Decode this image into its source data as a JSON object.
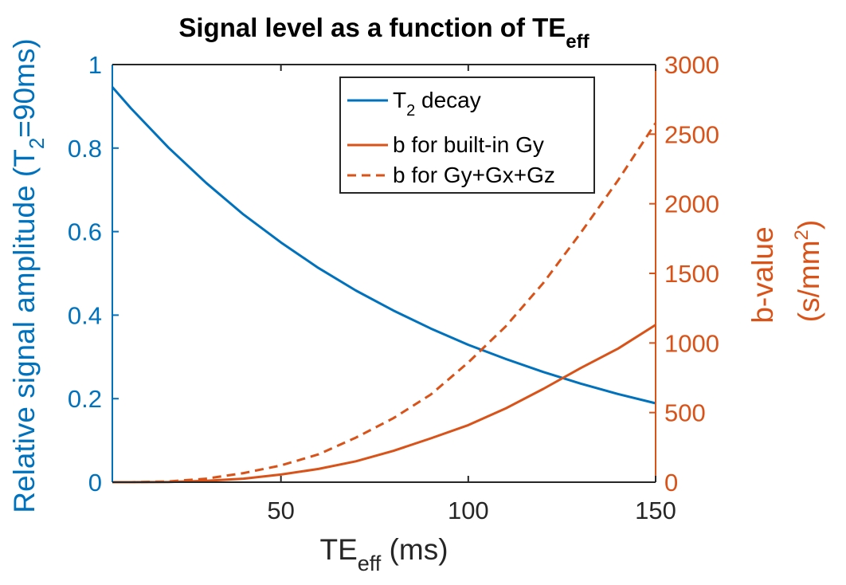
{
  "chart_data": {
    "type": "line",
    "title": {
      "main": "Signal level as a function of TE",
      "sub": "eff"
    },
    "xlabel": {
      "main": "TE",
      "sub": "eff",
      "tail": " (ms)"
    },
    "xlim": [
      5,
      150
    ],
    "xticks": [
      50,
      100,
      150
    ],
    "grid": false,
    "left_axis": {
      "label": {
        "pre": "Relative signal amplitude (T",
        "sub": "2",
        "post": "=90ms)"
      },
      "ylim": [
        0,
        1
      ],
      "ticks": [
        "0",
        "0.2",
        "0.4",
        "0.6",
        "0.8",
        "1"
      ],
      "tick_values": [
        0,
        0.2,
        0.4,
        0.6,
        0.8,
        1
      ],
      "color": "#0072BD"
    },
    "right_axis": {
      "label_line1": "b-value",
      "label_line2": {
        "pre": "(s/mm",
        "sup": "2",
        "post": ")"
      },
      "ylim": [
        0,
        3000
      ],
      "ticks": [
        "0",
        "500",
        "1000",
        "1500",
        "2000",
        "2500",
        "3000"
      ],
      "tick_values": [
        0,
        500,
        1000,
        1500,
        2000,
        2500,
        3000
      ],
      "color": "#D95319"
    },
    "series": [
      {
        "name": {
          "pre": "T",
          "sub": "2",
          "post": " decay"
        },
        "axis": "left",
        "style": "solid",
        "color": "#0072BD",
        "x": [
          5,
          10,
          20,
          30,
          40,
          50,
          60,
          70,
          80,
          90,
          100,
          110,
          120,
          130,
          140,
          150
        ],
        "y": [
          0.946,
          0.895,
          0.801,
          0.717,
          0.641,
          0.574,
          0.513,
          0.459,
          0.411,
          0.368,
          0.329,
          0.295,
          0.264,
          0.236,
          0.211,
          0.189
        ]
      },
      {
        "name": {
          "pre": "b for built-in Gy",
          "sub": "",
          "post": ""
        },
        "axis": "right",
        "style": "solid",
        "color": "#D95319",
        "x": [
          5,
          10,
          20,
          30,
          40,
          50,
          60,
          70,
          80,
          90,
          100,
          110,
          120,
          130,
          140,
          150
        ],
        "y": [
          0,
          0,
          2,
          10,
          25,
          55,
          95,
          150,
          225,
          315,
          410,
          530,
          670,
          820,
          960,
          1130
        ]
      },
      {
        "name": {
          "pre": "b for Gy+Gx+Gz",
          "sub": "",
          "post": ""
        },
        "axis": "right",
        "style": "dashed",
        "color": "#D95319",
        "x": [
          5,
          10,
          20,
          30,
          40,
          50,
          60,
          70,
          80,
          90,
          100,
          110,
          120,
          130,
          140,
          150
        ],
        "y": [
          0,
          0,
          5,
          25,
          65,
          120,
          200,
          320,
          460,
          630,
          860,
          1120,
          1430,
          1790,
          2170,
          2580
        ]
      }
    ],
    "legend": {
      "placement": "top-right-inside"
    }
  }
}
